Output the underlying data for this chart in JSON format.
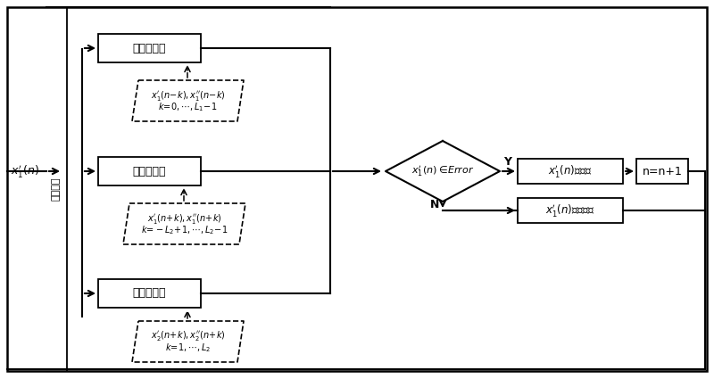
{
  "bg_color": "#ffffff",
  "line_color": "#000000",
  "box_color": "#ffffff",
  "fig_width": 8.0,
  "fig_height": 4.25,
  "dpi": 100,
  "parallel_label": "并行操作",
  "input_label": "$x_1^{\\prime}(n)$",
  "op1_label": "检测操作一",
  "op2_label": "检测操作二",
  "op3_label": "检测操作三",
  "data1_line1": "$x_1^{\\prime}(n\\!-\\!k), x_1^{\\prime\\prime}(n\\!-\\!k)$",
  "data1_line2": "$k\\!=\\!0,\\cdots,L_1\\!-\\!1$",
  "data2_line1": "$x_1^{\\prime}(n\\!+\\!k), x_1^{\\prime\\prime}(n\\!+\\!k)$",
  "data2_line2": "$k\\!=\\!-L_2\\!+\\!1,\\cdots,L_2\\!-\\!1$",
  "data3_line1": "$x_2^{\\prime}(n\\!+\\!k), x_2^{\\prime\\prime}(n\\!+\\!k)$",
  "data3_line2": "$k\\!=\\!1,\\cdots,L_2$",
  "diamond_label": "$x_1^{\\prime}(n)\\in\\! Error$",
  "yes_label": "Y",
  "no_label": "N",
  "result_yes_label": "$x_1^{\\prime}(n)$是误码",
  "result_no_label": "$x_1^{\\prime}(n)$不是误码",
  "counter_label": "n=n+1"
}
